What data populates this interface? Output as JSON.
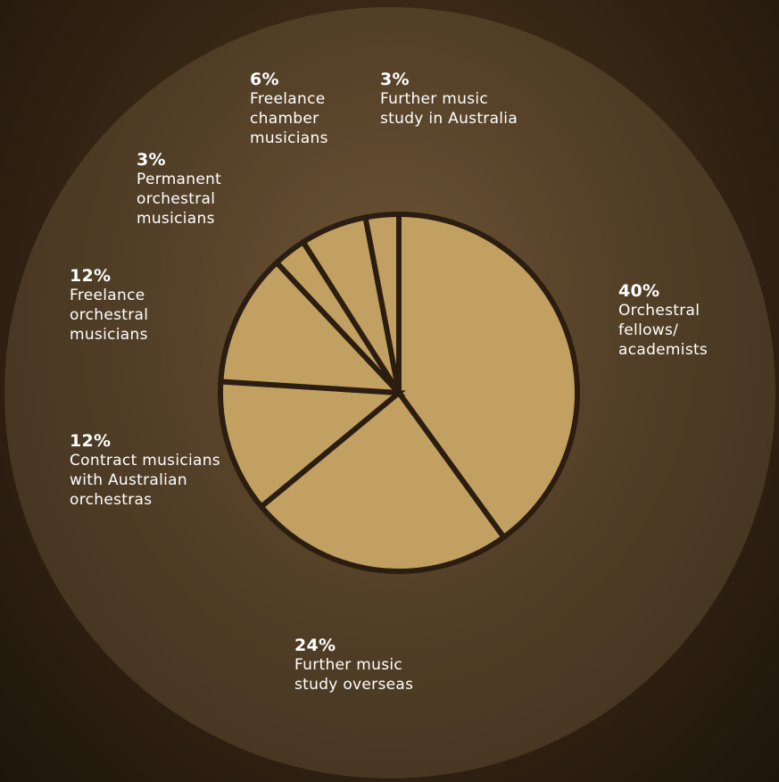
{
  "chart_data": {
    "type": "pie",
    "categories": [
      "Orchestral fellows/ academists",
      "Further music study overseas",
      "Contract musicians with Australian orchestras",
      "Freelance orchestral musicians",
      "Permanent orchestral musicians",
      "Freelance chamber musicians",
      "Further music study in Australia"
    ],
    "values": [
      40,
      24,
      12,
      12,
      3,
      6,
      3
    ],
    "value_labels": [
      "40%",
      "24%",
      "12%",
      "12%",
      "3%",
      "6%",
      "3%"
    ],
    "color": "#c2a062"
  }
}
